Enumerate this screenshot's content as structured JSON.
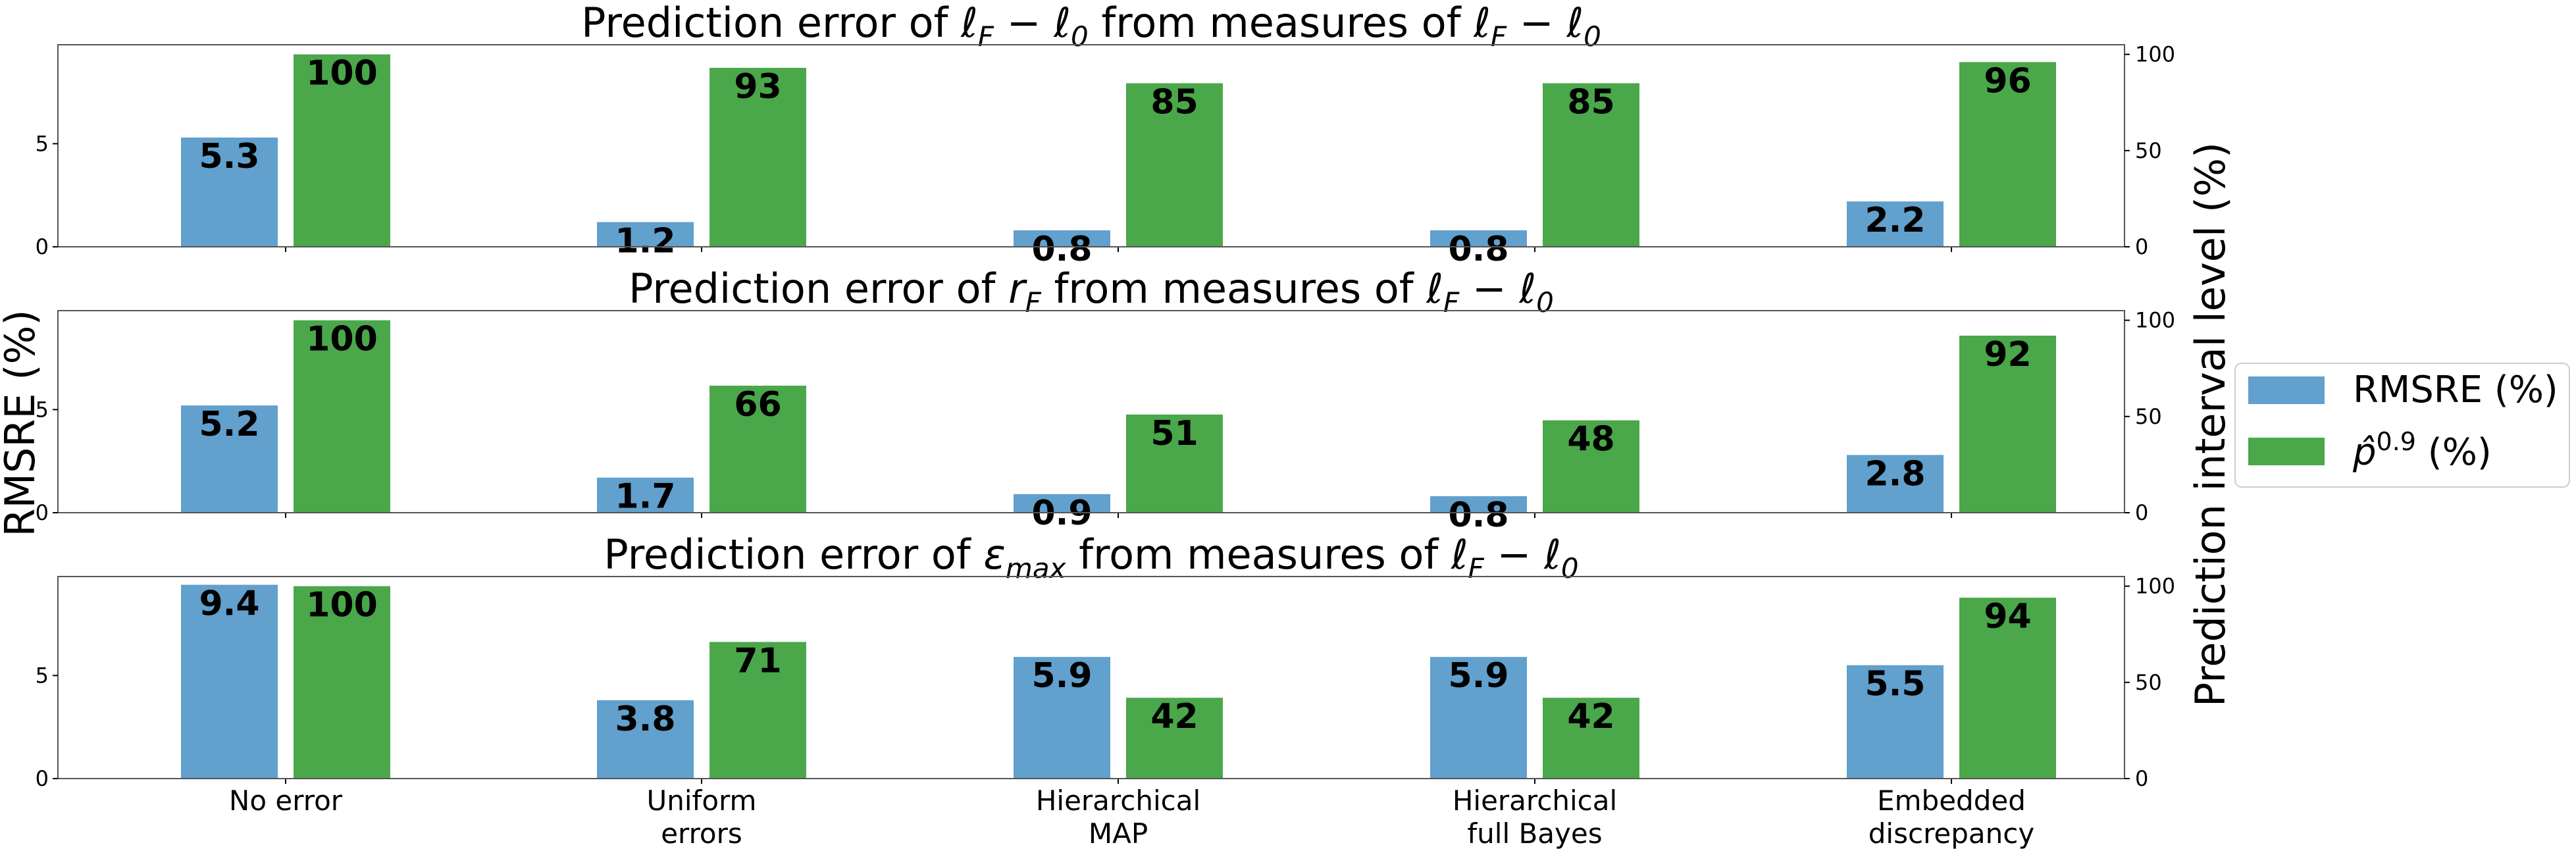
{
  "figure": {
    "ylabel_left": "RMSRE (%)",
    "ylabel_right": "Prediction interval level (%)"
  },
  "legend": {
    "placement": "right",
    "items": [
      {
        "label": "RMSRE (%)",
        "color": "#62a0cd"
      },
      {
        "label_base": "p̂",
        "label_sup": "0.9",
        "label_tail": " (%)",
        "color": "#4aa74a"
      }
    ]
  },
  "chart_data": [
    {
      "type": "bar",
      "title": {
        "pre": "Prediction error of ",
        "q1": {
          "base": "ℓ",
          "sub": "F"
        },
        "mid1": " − ",
        "q2": {
          "base": "ℓ",
          "sub": "0"
        },
        "mid2": " from measures of ",
        "q3": {
          "base": "ℓ",
          "sub": "F"
        },
        "mid3": " − ",
        "q4": {
          "base": "ℓ",
          "sub": "0"
        }
      },
      "categories": [
        "No error",
        "Uniform\nerrors",
        "Hierarchical\nMAP",
        "Hierarchical\nfull Bayes",
        "Embedded\ndiscrepancy"
      ],
      "series": [
        {
          "name": "RMSRE (%)",
          "axis": "left",
          "color": "#62a0cd",
          "values": [
            5.3,
            1.2,
            0.8,
            0.8,
            2.2
          ],
          "labels": [
            "5.3",
            "1.2",
            "0.8",
            "0.8",
            "2.2"
          ]
        },
        {
          "name": "p̂0.9 (%)",
          "axis": "right",
          "color": "#4aa74a",
          "values": [
            100,
            93,
            85,
            85,
            96
          ],
          "labels": [
            "100",
            "93",
            "85",
            "85",
            "96"
          ]
        }
      ],
      "yleft": {
        "lim": [
          0,
          9.8
        ],
        "ticks": [
          0,
          5
        ]
      },
      "yright": {
        "lim": [
          0,
          105
        ],
        "ticks": [
          0,
          50,
          100
        ]
      }
    },
    {
      "type": "bar",
      "title": {
        "pre": "Prediction error of ",
        "q1": {
          "base": "r",
          "sub": "F"
        },
        "mid1": " from measures of ",
        "q2": {
          "base": "ℓ",
          "sub": "F"
        },
        "mid2": " − ",
        "q3": {
          "base": "ℓ",
          "sub": "0"
        }
      },
      "categories": [
        "No error",
        "Uniform\nerrors",
        "Hierarchical\nMAP",
        "Hierarchical\nfull Bayes",
        "Embedded\ndiscrepancy"
      ],
      "series": [
        {
          "name": "RMSRE (%)",
          "axis": "left",
          "color": "#62a0cd",
          "values": [
            5.2,
            1.7,
            0.9,
            0.8,
            2.8
          ],
          "labels": [
            "5.2",
            "1.7",
            "0.9",
            "0.8",
            "2.8"
          ]
        },
        {
          "name": "p̂0.9 (%)",
          "axis": "right",
          "color": "#4aa74a",
          "values": [
            100,
            66,
            51,
            48,
            92
          ],
          "labels": [
            "100",
            "66",
            "51",
            "48",
            "92"
          ]
        }
      ],
      "yleft": {
        "lim": [
          0,
          9.8
        ],
        "ticks": [
          0,
          5
        ]
      },
      "yright": {
        "lim": [
          0,
          105
        ],
        "ticks": [
          0,
          50,
          100
        ]
      }
    },
    {
      "type": "bar",
      "title": {
        "pre": "Prediction error of ",
        "q1": {
          "base": "ε",
          "sub": "max"
        },
        "mid1": " from measures of ",
        "q2": {
          "base": "ℓ",
          "sub": "F"
        },
        "mid2": " − ",
        "q3": {
          "base": "ℓ",
          "sub": "0"
        }
      },
      "categories": [
        "No error",
        "Uniform\nerrors",
        "Hierarchical\nMAP",
        "Hierarchical\nfull Bayes",
        "Embedded\ndiscrepancy"
      ],
      "series": [
        {
          "name": "RMSRE (%)",
          "axis": "left",
          "color": "#62a0cd",
          "values": [
            9.4,
            3.8,
            5.9,
            5.9,
            5.5
          ],
          "labels": [
            "9.4",
            "3.8",
            "5.9",
            "5.9",
            "5.5"
          ]
        },
        {
          "name": "p̂0.9 (%)",
          "axis": "right",
          "color": "#4aa74a",
          "values": [
            100,
            71,
            42,
            42,
            94
          ],
          "labels": [
            "100",
            "71",
            "42",
            "42",
            "94"
          ]
        }
      ],
      "yleft": {
        "lim": [
          0,
          9.8
        ],
        "ticks": [
          0,
          5
        ]
      },
      "yright": {
        "lim": [
          0,
          105
        ],
        "ticks": [
          0,
          50,
          100
        ]
      }
    }
  ]
}
